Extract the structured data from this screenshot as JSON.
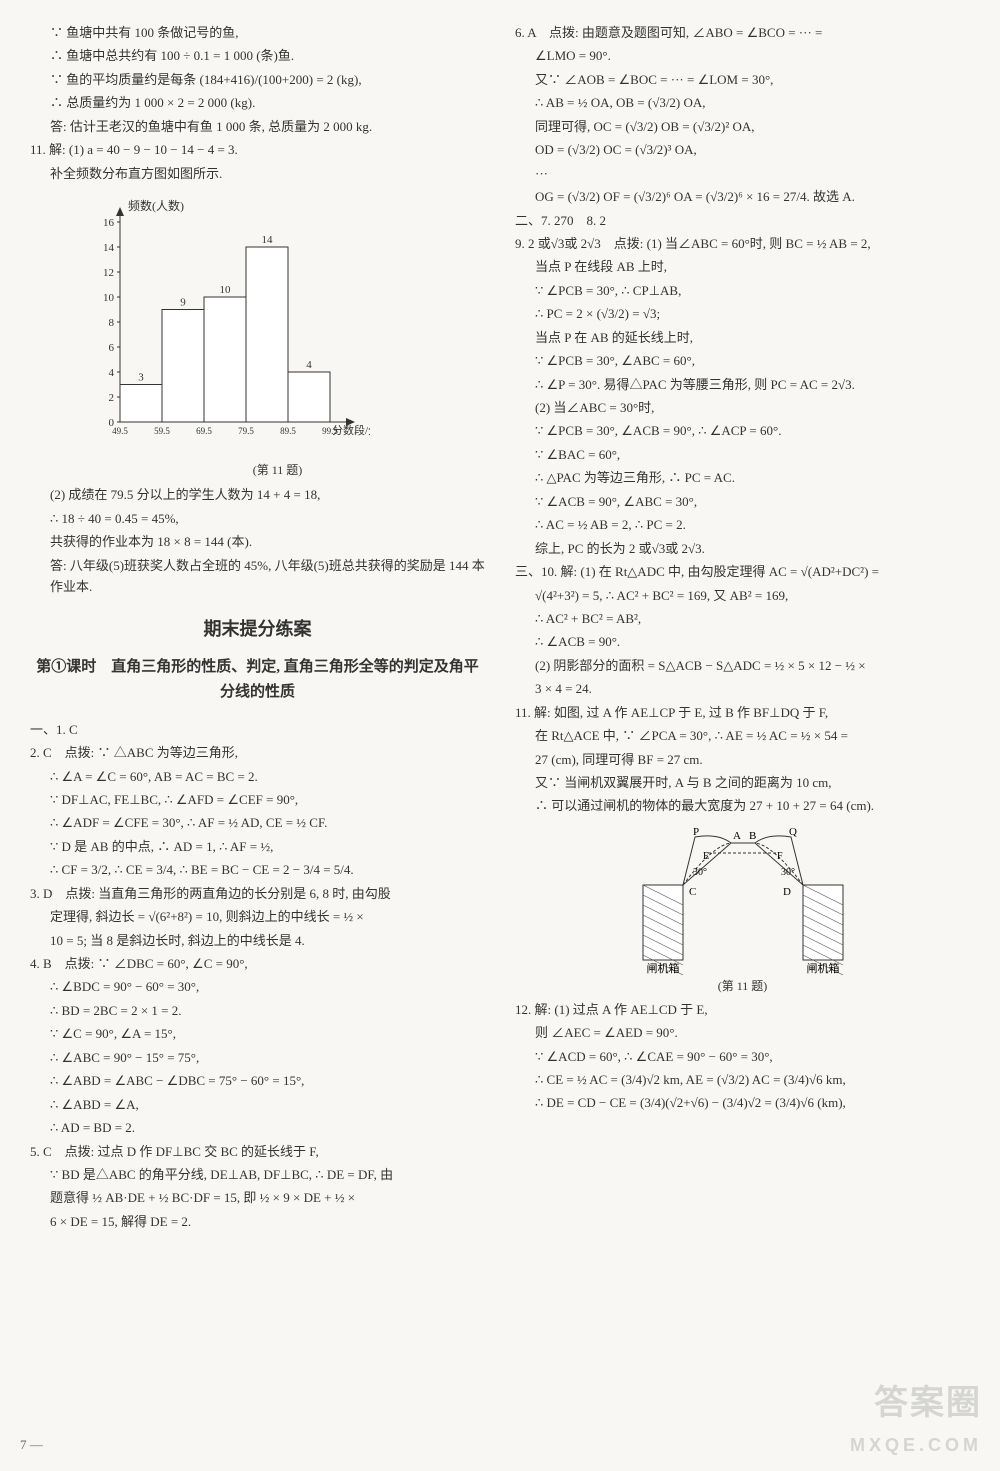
{
  "left": {
    "l1": "∵ 鱼塘中共有 100 条做记号的鱼,",
    "l2": "∴ 鱼塘中总共约有 100 ÷ 0.1 = 1 000 (条)鱼.",
    "l3": "∵ 鱼的平均质量约是每条 (184+416)/(100+200) = 2 (kg),",
    "l4": "∴ 总质量约为 1 000 × 2 = 2 000 (kg).",
    "l5": "答: 估计王老汉的鱼塘中有鱼 1 000 条, 总质量为 2 000 kg.",
    "l6": "11. 解: (1) a = 40 − 9 − 10 − 14 − 4 = 3.",
    "l7": "补全频数分布直方图如图所示.",
    "chart": {
      "y_label": "频数(人数)",
      "x_label": "分数段/分",
      "x_ticks": [
        "49.5",
        "59.5",
        "69.5",
        "79.5",
        "89.5",
        "99.5"
      ],
      "y_ticks": [
        0,
        2,
        4,
        6,
        8,
        10,
        12,
        14,
        16
      ],
      "bars": [
        3,
        9,
        10,
        14,
        4
      ],
      "bar_fill": "#ffffff",
      "bar_stroke": "#333333",
      "axis_color": "#333333",
      "caption": "(第 11 题)"
    },
    "l8": "(2) 成绩在 79.5 分以上的学生人数为 14 + 4 = 18,",
    "l9": "∴ 18 ÷ 40 = 0.45 = 45%,",
    "l10": "共获得的作业本为 18 × 8 = 144 (本).",
    "l11": "答: 八年级(5)班获奖人数占全班的 45%, 八年级(5)班总共获得的奖励是 144 本作业本.",
    "section": "期末提分练案",
    "subsection": "第①课时　直角三角形的性质、判定, 直角三角形全等的判定及角平分线的性质",
    "a1": "一、1. C",
    "a2a": "2. C　点拨: ∵ △ABC 为等边三角形,",
    "a2b": "∴ ∠A = ∠C = 60°, AB = AC = BC = 2.",
    "a2c": "∵ DF⊥AC, FE⊥BC, ∴ ∠AFD = ∠CEF = 90°,",
    "a2d": "∴ ∠ADF = ∠CFE = 30°, ∴ AF = ½ AD, CE = ½ CF.",
    "a2e": "∵ D 是 AB 的中点, ∴ AD = 1, ∴ AF = ½,",
    "a2f": "∴ CF = 3/2, ∴ CE = 3/4, ∴ BE = BC − CE = 2 − 3/4 = 5/4.",
    "a3a": "3. D　点拨: 当直角三角形的两直角边的长分别是 6, 8 时, 由勾股",
    "a3b": "定理得, 斜边长 = √(6²+8²) = 10, 则斜边上的中线长 = ½ ×",
    "a3c": "10 = 5; 当 8 是斜边长时, 斜边上的中线长是 4.",
    "a4a": "4. B　点拨: ∵ ∠DBC = 60°, ∠C = 90°,",
    "a4b": "∴ ∠BDC = 90° − 60° = 30°,",
    "a4c": "∴ BD = 2BC = 2 × 1 = 2.",
    "a4d": "∵ ∠C = 90°, ∠A = 15°,",
    "a4e": "∴ ∠ABC = 90° − 15° = 75°,",
    "a4f": "∴ ∠ABD = ∠ABC − ∠DBC = 75° − 60° = 15°,",
    "a4g": "∴ ∠ABD = ∠A,",
    "a4h": "∴ AD = BD = 2.",
    "a5a": "5. C　点拨: 过点 D 作 DF⊥BC 交 BC 的延长线于 F,",
    "a5b": "∵ BD 是△ABC 的角平分线, DE⊥AB, DF⊥BC, ∴ DE = DF, 由",
    "a5c": "题意得 ½ AB·DE + ½ BC·DF = 15, 即 ½ × 9 × DE + ½ ×",
    "a5d": "6 × DE = 15, 解得 DE = 2."
  },
  "right": {
    "r1": "6. A　点拨: 由题意及题图可知, ∠ABO = ∠BCO = ··· =",
    "r2": "∠LMO = 90°.",
    "r3": "又∵ ∠AOB = ∠BOC = ··· = ∠LOM = 30°,",
    "r4": "∴ AB = ½ OA, OB = (√3/2) OA,",
    "r5": "同理可得, OC = (√3/2) OB = (√3/2)² OA,",
    "r6": "OD = (√3/2) OC = (√3/2)³ OA,",
    "r7": "···",
    "r8": "OG = (√3/2) OF = (√3/2)⁶ OA = (√3/2)⁶ × 16 = 27/4. 故选 A.",
    "r9": "二、7. 270　8. 2",
    "r10": "9. 2 或√3或 2√3　点拨: (1) 当∠ABC = 60°时, 则 BC = ½ AB = 2,",
    "r10a": "当点 P 在线段 AB 上时,",
    "r10b": "∵ ∠PCB = 30°, ∴ CP⊥AB,",
    "r10c": "∴ PC = 2 × (√3/2) = √3;",
    "r10d": "当点 P 在 AB 的延长线上时,",
    "r10e": "∵ ∠PCB = 30°, ∠ABC = 60°,",
    "r10f": "∴ ∠P = 30°. 易得△PAC 为等腰三角形, 则 PC = AC = 2√3.",
    "r10g": "(2) 当∠ABC = 30°时,",
    "r10h": "∵ ∠PCB = 30°, ∠ACB = 90°, ∴ ∠ACP = 60°.",
    "r10i": "∵ ∠BAC = 60°,",
    "r10j": "∴ △PAC 为等边三角形, ∴ PC = AC.",
    "r10k": "∵ ∠ACB = 90°, ∠ABC = 30°,",
    "r10l": "∴ AC = ½ AB = 2, ∴ PC = 2.",
    "r10m": "综上, PC 的长为 2 或√3或 2√3.",
    "r11a": "三、10. 解: (1) 在 Rt△ADC 中, 由勾股定理得 AC = √(AD²+DC²) =",
    "r11b": "√(4²+3²) = 5, ∴ AC² + BC² = 169, 又 AB² = 169,",
    "r11c": "∴ AC² + BC² = AB²,",
    "r11d": "∴ ∠ACB = 90°.",
    "r11e": "(2) 阴影部分的面积 = S△ACB − S△ADC = ½ × 5 × 12 − ½ ×",
    "r11f": "3 × 4 = 24.",
    "r12a": "11. 解: 如图, 过 A 作 AE⊥CP 于 E, 过 B 作 BF⊥DQ 于 F,",
    "r12b": "在 Rt△ACE 中, ∵ ∠PCA = 30°, ∴ AE = ½ AC = ½ × 54 =",
    "r12c": "27 (cm), 同理可得 BF = 27 cm.",
    "r12d": "又∵ 当闸机双翼展开时, A 与 B 之间的距离为 10 cm,",
    "r12e": "∴ 可以通过闸机的物体的最大宽度为 27 + 10 + 27 = 64 (cm).",
    "diagram": {
      "caption": "(第 11 题)",
      "label_P": "P",
      "label_A": "A",
      "label_B": "B",
      "label_Q": "Q",
      "label_E": "E",
      "label_F": "F",
      "label_C": "C",
      "label_D": "D",
      "angle": "30°",
      "box_label": "闸机箱",
      "stroke": "#333333",
      "fill": "#ffffff",
      "hatch": "#555555"
    },
    "r13a": "12. 解: (1) 过点 A 作 AE⊥CD 于 E,",
    "r13b": "则 ∠AEC = ∠AED = 90°.",
    "r13c": "∵ ∠ACD = 60°, ∴ ∠CAE = 90° − 60° = 30°,",
    "r13d": "∴ CE = ½ AC = (3/4)√2 km, AE = (√3/2) AC = (3/4)√6 km,",
    "r13e": "∴ DE = CD − CE = (3/4)(√2+√6) − (3/4)√2 = (3/4)√6 (km),"
  },
  "footer": {
    "page": "7 —",
    "wm1": "答案圈",
    "wm2": "MXQE.COM"
  }
}
